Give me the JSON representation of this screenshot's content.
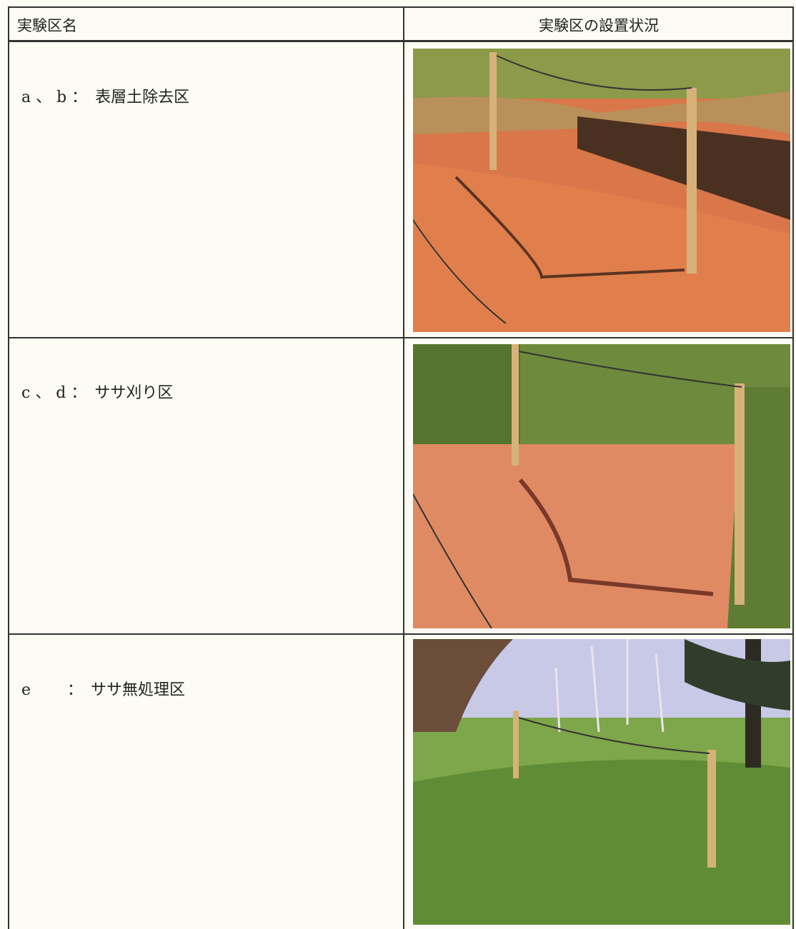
{
  "table": {
    "header": [
      "実験区名",
      "実験区の設置状況"
    ],
    "rows": [
      [
        "a 、 b ：　表層土除去区"
      ],
      [
        "c 、 d ：　ササ刈り区"
      ],
      [
        "e　　 ：　ササ無処理区"
      ]
    ]
  }
}
